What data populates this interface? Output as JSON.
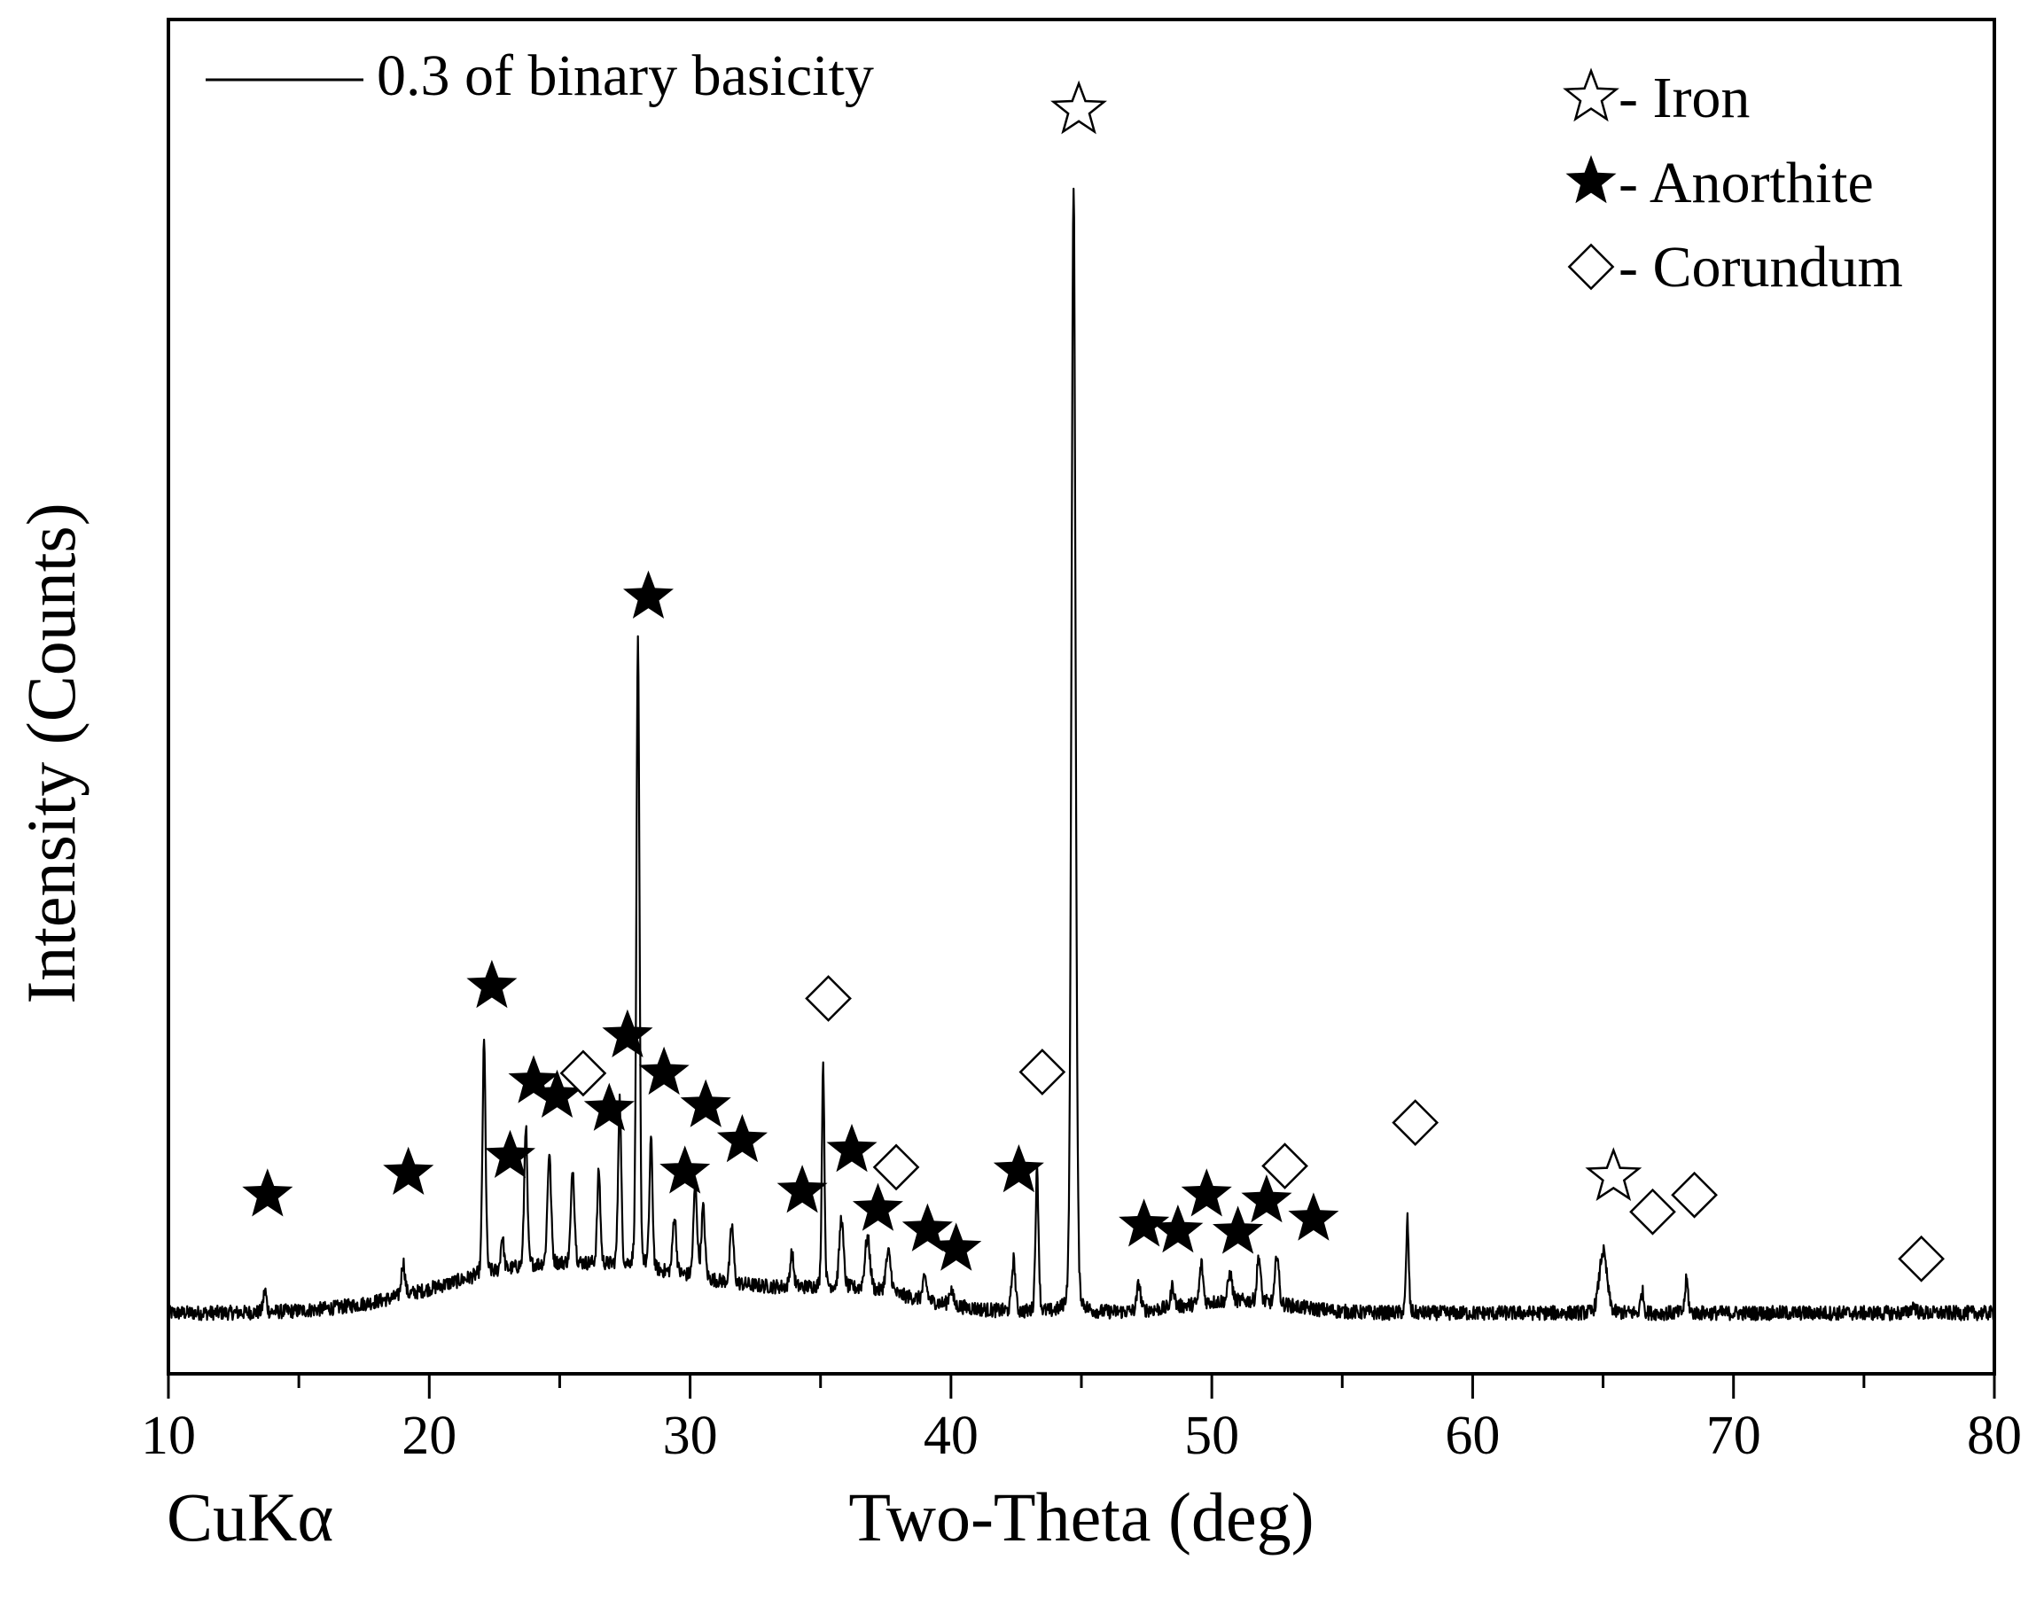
{
  "chart_data": {
    "type": "line",
    "title": "",
    "xlabel": "Two-Theta (deg)",
    "ylabel": "Intensity (Counts)",
    "radiation_label": "CuKα",
    "xlim": [
      10,
      80
    ],
    "ylim": [
      0,
      100
    ],
    "xticks": [
      10,
      20,
      30,
      40,
      50,
      60,
      70,
      80
    ],
    "xtick_labels": [
      "10",
      "20",
      "30",
      "40",
      "50",
      "60",
      "70",
      "80"
    ],
    "grid": false,
    "legend": {
      "position": "top-left",
      "entries": [
        "0.3 of binary basicity"
      ]
    },
    "series": [
      {
        "name": "0.3 of binary basicity",
        "baseline": 3.2,
        "peaks": [
          [
            13.7,
            5.0,
            0.06
          ],
          [
            19.0,
            6.0,
            0.07
          ],
          [
            22.1,
            22.5,
            0.06
          ],
          [
            22.8,
            6.0,
            0.06
          ],
          [
            23.7,
            15.0,
            0.06
          ],
          [
            24.6,
            12.5,
            0.07
          ],
          [
            25.5,
            11.0,
            0.07
          ],
          [
            26.5,
            11.0,
            0.06
          ],
          [
            27.3,
            17.0,
            0.06
          ],
          [
            28.0,
            55.0,
            0.06
          ],
          [
            28.5,
            14.0,
            0.06
          ],
          [
            29.4,
            8.0,
            0.07
          ],
          [
            30.2,
            11.0,
            0.07
          ],
          [
            30.5,
            9.0,
            0.07
          ],
          [
            31.6,
            8.0,
            0.07
          ],
          [
            33.9,
            6.0,
            0.07
          ],
          [
            35.1,
            22.0,
            0.05
          ],
          [
            35.8,
            9.0,
            0.08
          ],
          [
            36.8,
            7.5,
            0.1
          ],
          [
            37.6,
            6.5,
            0.1
          ],
          [
            39.0,
            5.0,
            0.08
          ],
          [
            40.0,
            4.5,
            0.08
          ],
          [
            42.4,
            7.5,
            0.07
          ],
          [
            43.3,
            15.0,
            0.06
          ],
          [
            44.7,
            97.0,
            0.08
          ],
          [
            47.2,
            5.5,
            0.07
          ],
          [
            48.5,
            5.0,
            0.07
          ],
          [
            49.6,
            6.5,
            0.07
          ],
          [
            50.7,
            5.5,
            0.08
          ],
          [
            51.8,
            7.0,
            0.07
          ],
          [
            52.5,
            7.5,
            0.07
          ],
          [
            57.5,
            11.0,
            0.05
          ],
          [
            65.0,
            8.3,
            0.15
          ],
          [
            66.5,
            5.0,
            0.06
          ],
          [
            68.2,
            6.0,
            0.06
          ],
          [
            76.9,
            3.8,
            0.1
          ]
        ],
        "broad": [
          [
            23,
            2.0,
            3.5
          ],
          [
            28,
            3.0,
            4.5
          ],
          [
            36.5,
            1.5,
            2.5
          ],
          [
            51,
            1.0,
            2.0
          ]
        ],
        "noise_amplitude": 0.6
      }
    ],
    "markers": {
      "iron": {
        "symbol": "open-star",
        "label": "- Iron",
        "points": [
          [
            44.9,
            103
          ],
          [
            65.4,
            14.5
          ]
        ]
      },
      "anorthite": {
        "symbol": "filled-star",
        "label": "- Anorthite",
        "points": [
          [
            13.8,
            13
          ],
          [
            19.2,
            14.8
          ],
          [
            22.4,
            30.3
          ],
          [
            23.1,
            16.2
          ],
          [
            24.0,
            22.4
          ],
          [
            24.9,
            21.2
          ],
          [
            26.9,
            20.1
          ],
          [
            27.6,
            26.2
          ],
          [
            28.4,
            62.6
          ],
          [
            29.0,
            23.1
          ],
          [
            29.8,
            14.9
          ],
          [
            30.6,
            20.4
          ],
          [
            32.0,
            17.5
          ],
          [
            34.3,
            13.3
          ],
          [
            36.2,
            16.7
          ],
          [
            37.2,
            11.8
          ],
          [
            39.1,
            10.1
          ],
          [
            40.2,
            8.5
          ],
          [
            42.6,
            15.0
          ],
          [
            47.4,
            10.5
          ],
          [
            48.7,
            10.0
          ],
          [
            49.8,
            13.0
          ],
          [
            51.0,
            9.9
          ],
          [
            52.1,
            12.5
          ],
          [
            53.9,
            11.0
          ]
        ]
      },
      "corundum": {
        "symbol": "open-diamond",
        "label": "- Corundum",
        "points": [
          [
            25.9,
            23.1
          ],
          [
            35.3,
            29.3
          ],
          [
            37.9,
            15.3
          ],
          [
            43.5,
            23.2
          ],
          [
            52.8,
            15.4
          ],
          [
            57.8,
            19.0
          ],
          [
            66.9,
            11.6
          ],
          [
            68.5,
            13.0
          ],
          [
            77.2,
            7.7
          ]
        ]
      }
    }
  }
}
